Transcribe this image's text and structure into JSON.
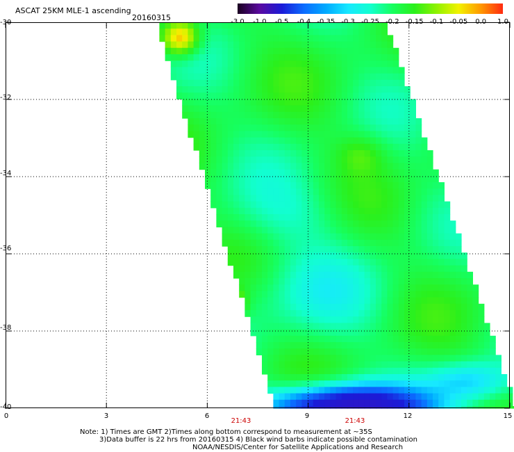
{
  "header": {
    "title": "ASCAT 25KM MLE-1 ascending",
    "date": "20160315"
  },
  "colorbar": {
    "ticks": [
      "-3.0",
      "-1.0",
      "-0.5",
      "-0.4",
      "-0.35",
      "-0.3",
      "-0.25",
      "-0.2",
      "-0.15",
      "-0.1",
      "-0.05",
      "0.0",
      "1.0"
    ],
    "colors": [
      "#1a0020",
      "#5a0aa0",
      "#1b1bd8",
      "#0b6cff",
      "#00aaff",
      "#17e8ff",
      "#12ffcf",
      "#16ff60",
      "#2bf01b",
      "#8ff200",
      "#f2f200",
      "#ff9800",
      "#ff2a10"
    ]
  },
  "axes": {
    "lat_labels": [
      "-30",
      "-32",
      "-34",
      "-36",
      "-38",
      "-40"
    ],
    "lon_labels": [
      "0",
      "3",
      "6",
      "9",
      "12",
      "15"
    ],
    "time_labels": [
      "21:43",
      "21:43"
    ]
  },
  "map_data": {
    "lat_range": [
      -40,
      -30
    ],
    "lon_range": [
      0,
      15
    ],
    "swath_description": "MLE-1 values mostly between -0.25 and -0.15, yellow near -30S 5-6E, blue near -40S 8-12E"
  },
  "notes": {
    "line1": "Note: 1) Times are GMT 2)Times along bottom correspond to measurement at ~35S",
    "line2": "3)Data buffer is 22 hrs from 20160315 4) Black wind barbs indicate possible contamination",
    "line3": "NOAA/NESDIS/Center for Satellite Applications and Research"
  }
}
